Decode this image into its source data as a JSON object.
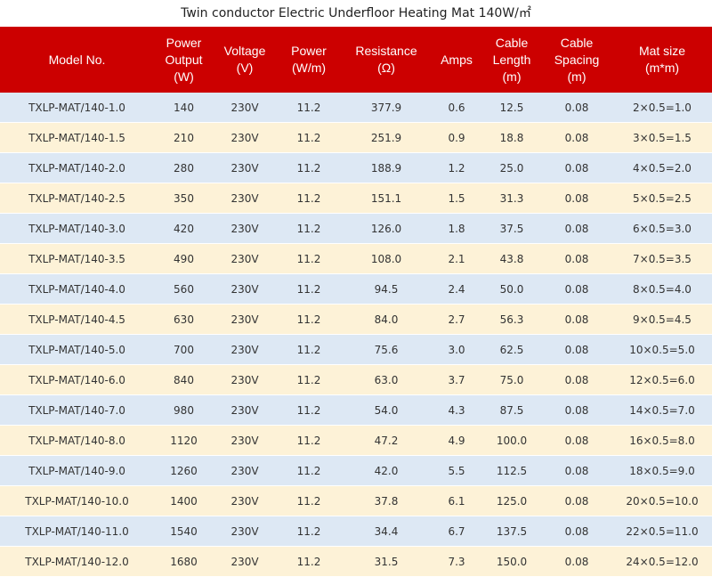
{
  "title": "Twin conductor Electric Underfloor Heating Mat 140W/㎡",
  "headers": [
    [
      "Model No."
    ],
    [
      "Power",
      "Output",
      "(W)"
    ],
    [
      "Voltage",
      "(V)"
    ],
    [
      "Power",
      "(W/m)"
    ],
    [
      "Resistance",
      "(Ω)"
    ],
    [
      "Amps"
    ],
    [
      "Cable",
      "Length",
      "(m)"
    ],
    [
      "Cable",
      "Spacing",
      "(m)"
    ],
    [
      "Mat size",
      "(m*m)"
    ]
  ],
  "rows": [
    [
      "TXLP-MAT/140-1.0",
      "140",
      "230V",
      "11.2",
      "377.9",
      "0.6",
      "12.5",
      "0.08",
      "2×0.5=1.0"
    ],
    [
      "TXLP-MAT/140-1.5",
      "210",
      "230V",
      "11.2",
      "251.9",
      "0.9",
      "18.8",
      "0.08",
      "3×0.5=1.5"
    ],
    [
      "TXLP-MAT/140-2.0",
      "280",
      "230V",
      "11.2",
      "188.9",
      "1.2",
      "25.0",
      "0.08",
      "4×0.5=2.0"
    ],
    [
      "TXLP-MAT/140-2.5",
      "350",
      "230V",
      "11.2",
      "151.1",
      "1.5",
      "31.3",
      "0.08",
      "5×0.5=2.5"
    ],
    [
      "TXLP-MAT/140-3.0",
      "420",
      "230V",
      "11.2",
      "126.0",
      "1.8",
      "37.5",
      "0.08",
      "6×0.5=3.0"
    ],
    [
      "TXLP-MAT/140-3.5",
      "490",
      "230V",
      "11.2",
      "108.0",
      "2.1",
      "43.8",
      "0.08",
      "7×0.5=3.5"
    ],
    [
      "TXLP-MAT/140-4.0",
      "560",
      "230V",
      "11.2",
      "94.5",
      "2.4",
      "50.0",
      "0.08",
      "8×0.5=4.0"
    ],
    [
      "TXLP-MAT/140-4.5",
      "630",
      "230V",
      "11.2",
      "84.0",
      "2.7",
      "56.3",
      "0.08",
      "9×0.5=4.5"
    ],
    [
      "TXLP-MAT/140-5.0",
      "700",
      "230V",
      "11.2",
      "75.6",
      "3.0",
      "62.5",
      "0.08",
      "10×0.5=5.0"
    ],
    [
      "TXLP-MAT/140-6.0",
      "840",
      "230V",
      "11.2",
      "63.0",
      "3.7",
      "75.0",
      "0.08",
      "12×0.5=6.0"
    ],
    [
      "TXLP-MAT/140-7.0",
      "980",
      "230V",
      "11.2",
      "54.0",
      "4.3",
      "87.5",
      "0.08",
      "14×0.5=7.0"
    ],
    [
      "TXLP-MAT/140-8.0",
      "1120",
      "230V",
      "11.2",
      "47.2",
      "4.9",
      "100.0",
      "0.08",
      "16×0.5=8.0"
    ],
    [
      "TXLP-MAT/140-9.0",
      "1260",
      "230V",
      "11.2",
      "42.0",
      "5.5",
      "112.5",
      "0.08",
      "18×0.5=9.0"
    ],
    [
      "TXLP-MAT/140-10.0",
      "1400",
      "230V",
      "11.2",
      "37.8",
      "6.1",
      "125.0",
      "0.08",
      "20×0.5=10.0"
    ],
    [
      "TXLP-MAT/140-11.0",
      "1540",
      "230V",
      "11.2",
      "34.4",
      "6.7",
      "137.5",
      "0.08",
      "22×0.5=11.0"
    ],
    [
      "TXLP-MAT/140-12.0",
      "1680",
      "230V",
      "11.2",
      "31.5",
      "7.3",
      "150.0",
      "0.08",
      "24×0.5=12.0"
    ]
  ],
  "colors": {
    "header_bg": "#cc0000",
    "header_text": "#ffffff",
    "row_odd": "#dde8f4",
    "row_even": "#fdf2d7"
  }
}
